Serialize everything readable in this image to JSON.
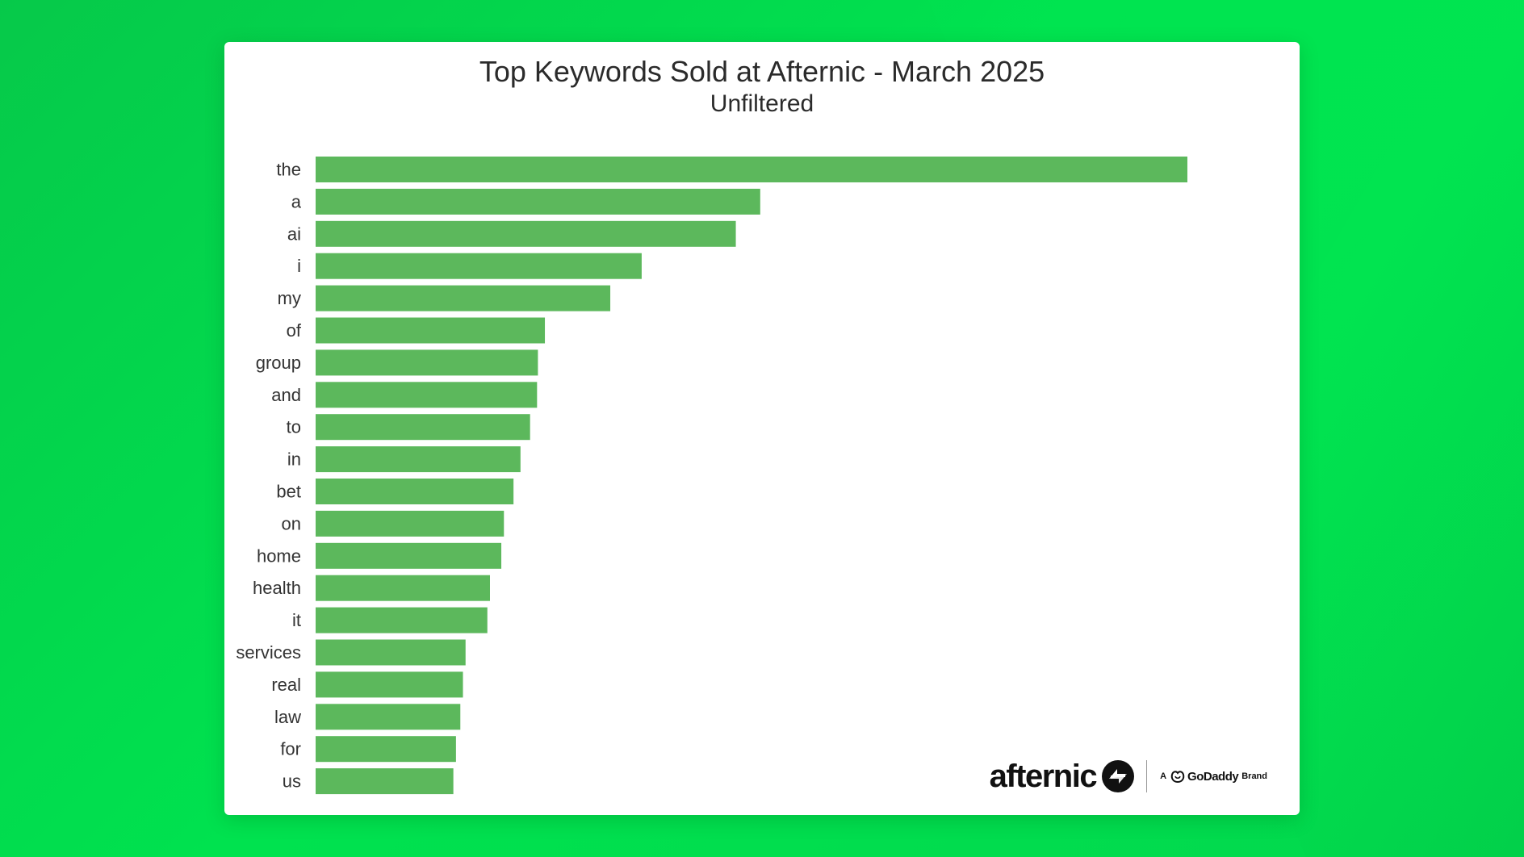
{
  "chart_data": {
    "type": "bar",
    "orientation": "horizontal",
    "title": "Top Keywords Sold at Afternic - March 2025",
    "subtitle": "Unfiltered",
    "xlabel": "",
    "ylabel": "",
    "grid": false,
    "bar_color": "#5cb85c",
    "categories": [
      "the",
      "a",
      "ai",
      "i",
      "my",
      "of",
      "group",
      "and",
      "to",
      "in",
      "bet",
      "on",
      "home",
      "health",
      "it",
      "services",
      "real",
      "law",
      "for",
      "us"
    ],
    "values": [
      100,
      51,
      48.2,
      37.4,
      33.8,
      26.3,
      25.5,
      25.4,
      24.6,
      23.5,
      22.7,
      21.6,
      21.3,
      20.0,
      19.7,
      17.2,
      16.9,
      16.6,
      16.1,
      15.8
    ],
    "xlim": [
      0,
      100
    ]
  },
  "branding": {
    "afternic": "afternic",
    "prefix": "A",
    "godaddy": "GoDaddy",
    "suffix": "Brand",
    "icon_afternic": "afternic-arrows-icon",
    "icon_godaddy": "godaddy-icon"
  }
}
